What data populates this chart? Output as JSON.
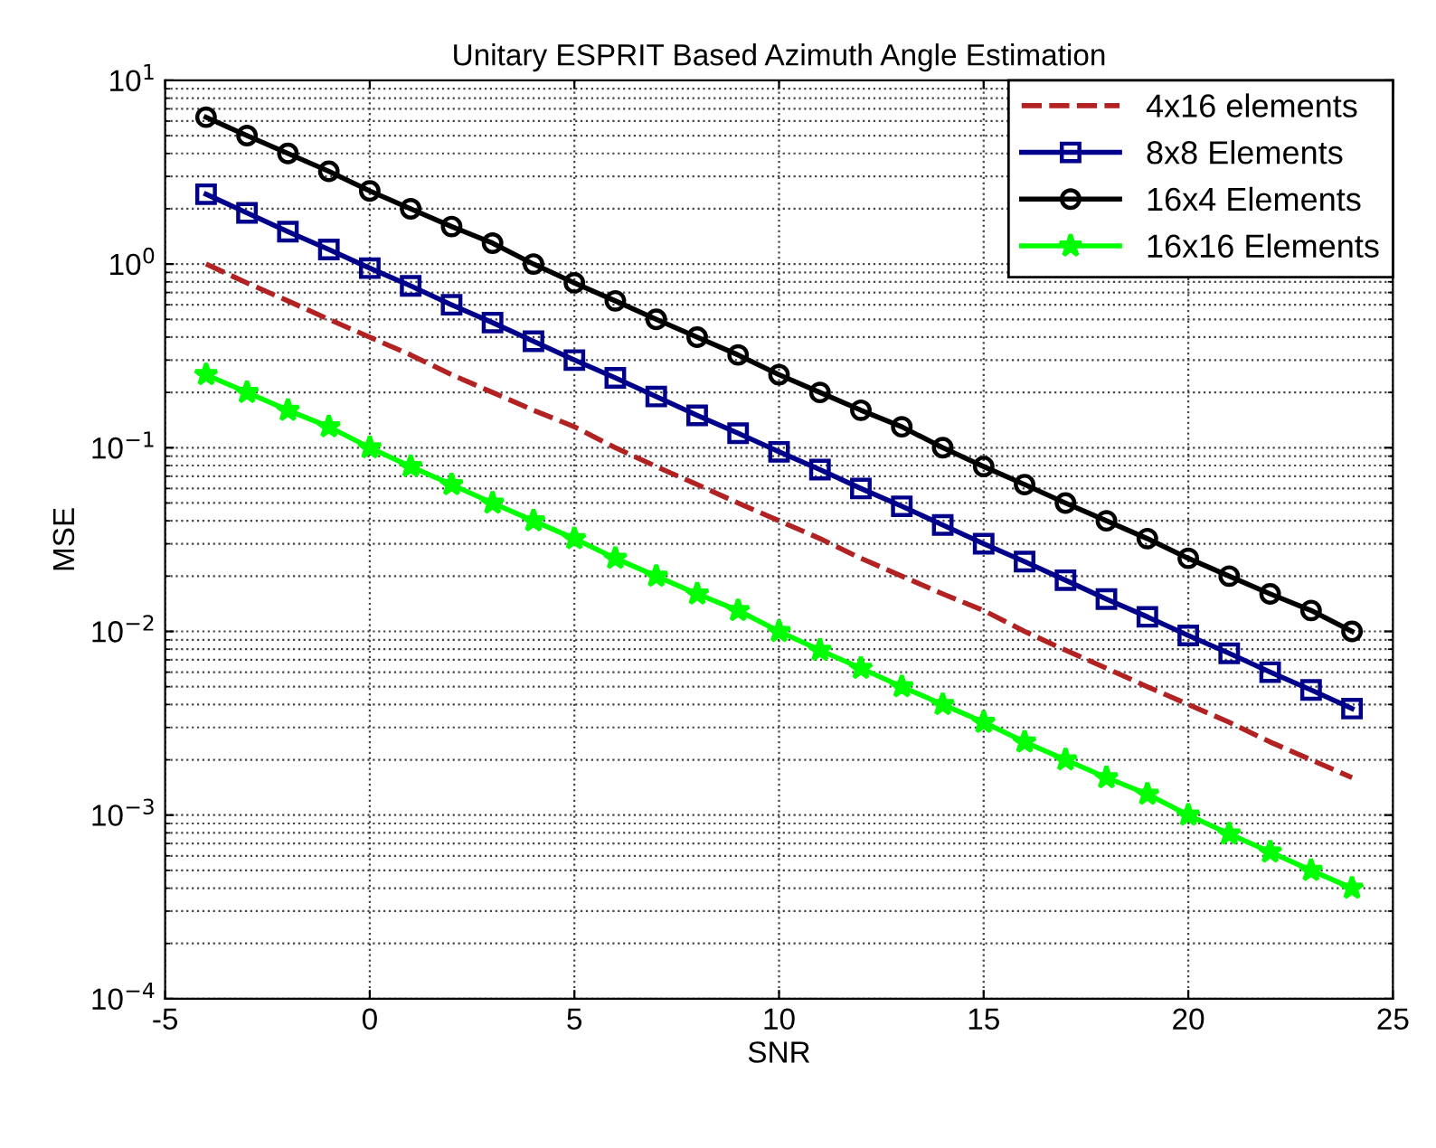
{
  "chart_data": {
    "type": "line",
    "title": "Unitary ESPRIT Based Azimuth Angle Estimation",
    "xlabel": "SNR",
    "ylabel": "MSE",
    "x": [
      -4,
      -3,
      -2,
      -1,
      0,
      1,
      2,
      3,
      4,
      5,
      6,
      7,
      8,
      9,
      10,
      11,
      12,
      13,
      14,
      15,
      16,
      17,
      18,
      19,
      20,
      21,
      22,
      23,
      24
    ],
    "series": [
      {
        "name": "4x16 elements",
        "color": "#b22222",
        "line_style": "dashed",
        "marker": "none",
        "values": [
          1.0,
          0.79,
          0.63,
          0.5,
          0.4,
          0.32,
          0.25,
          0.2,
          0.16,
          0.13,
          0.1,
          0.079,
          0.063,
          0.05,
          0.04,
          0.032,
          0.025,
          0.02,
          0.016,
          0.013,
          0.01,
          0.0079,
          0.0063,
          0.005,
          0.004,
          0.0032,
          0.0025,
          0.002,
          0.0016
        ]
      },
      {
        "name": "8x8 Elements",
        "color": "#00008b",
        "line_style": "solid",
        "marker": "square",
        "values": [
          2.4,
          1.9,
          1.5,
          1.2,
          0.95,
          0.76,
          0.6,
          0.48,
          0.38,
          0.3,
          0.24,
          0.19,
          0.15,
          0.12,
          0.095,
          0.076,
          0.06,
          0.048,
          0.038,
          0.03,
          0.024,
          0.019,
          0.015,
          0.012,
          0.0095,
          0.0076,
          0.006,
          0.0048,
          0.0038
        ]
      },
      {
        "name": "16x4 Elements",
        "color": "#000000",
        "line_style": "solid",
        "marker": "circle",
        "values": [
          6.3,
          5.0,
          4.0,
          3.2,
          2.5,
          2.0,
          1.6,
          1.3,
          1.0,
          0.79,
          0.63,
          0.5,
          0.4,
          0.32,
          0.25,
          0.2,
          0.16,
          0.13,
          0.1,
          0.079,
          0.063,
          0.05,
          0.04,
          0.032,
          0.025,
          0.02,
          0.016,
          0.013,
          0.01
        ]
      },
      {
        "name": "16x16 Elements",
        "color": "#00ff00",
        "line_style": "solid",
        "marker": "star",
        "values": [
          0.25,
          0.2,
          0.16,
          0.13,
          0.1,
          0.079,
          0.063,
          0.05,
          0.04,
          0.032,
          0.025,
          0.02,
          0.016,
          0.013,
          0.01,
          0.0079,
          0.0063,
          0.005,
          0.004,
          0.0032,
          0.0025,
          0.002,
          0.0016,
          0.0013,
          0.001,
          0.00079,
          0.00063,
          0.0005,
          0.0004
        ]
      }
    ],
    "log": "y",
    "xlim": [
      -5,
      25
    ],
    "xticks": [
      -5,
      0,
      5,
      10,
      15,
      20,
      25
    ],
    "ylim": [
      0.0001,
      10
    ],
    "yticks": [
      {
        "value": 0.0001,
        "label": "10$^{−4}$"
      },
      {
        "value": 0.001,
        "label": "10$^{−3}$"
      },
      {
        "value": 0.01,
        "label": "10$^{−2}$"
      },
      {
        "value": 0.1,
        "label": "10$^{−1}$"
      },
      {
        "value": 1,
        "label": "10$^{0}$"
      },
      {
        "value": 10,
        "label": "10$^{1}$"
      }
    ],
    "grid": true,
    "legend": "top right"
  }
}
